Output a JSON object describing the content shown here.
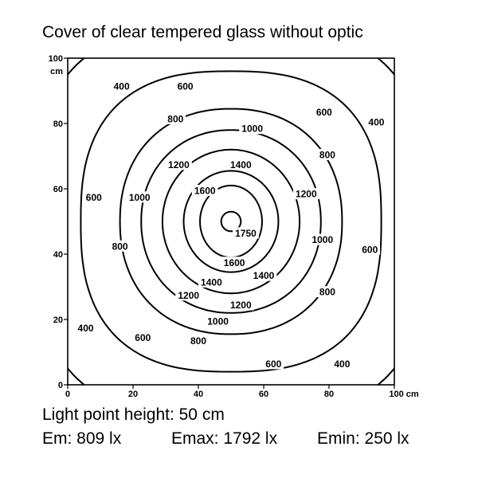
{
  "title": "Cover of clear tempered glass without optic",
  "footer": {
    "height_text": "Light point height: 50 cm",
    "em_text": "Em: 809 lx",
    "emax_text": "Emax: 1792 lx",
    "emin_text": "Emin: 250 lx"
  },
  "chart_data": {
    "type": "contour",
    "title": "Cover of clear tempered glass without optic",
    "xlabel": "",
    "ylabel": "",
    "unit_label": "cm",
    "xlim": [
      0,
      100
    ],
    "ylim": [
      0,
      100
    ],
    "x_ticks": [
      "0",
      "20",
      "40",
      "60",
      "80",
      "100 cm"
    ],
    "y_ticks": [
      "0",
      "20",
      "40",
      "60",
      "80",
      "100"
    ],
    "grid": false,
    "center": [
      50,
      50
    ],
    "levels": [
      {
        "value": 400,
        "label": "400",
        "rx": 60,
        "ry": 60,
        "sharpness": 3.0
      },
      {
        "value": 600,
        "label": "600",
        "rx": 46,
        "ry": 46,
        "sharpness": 2.6
      },
      {
        "value": 800,
        "label": "800",
        "rx": 34,
        "ry": 34.5,
        "sharpness": 2.2
      },
      {
        "value": 1000,
        "label": "1000",
        "rx": 27.5,
        "ry": 28,
        "sharpness": 2.1
      },
      {
        "value": 1200,
        "label": "1200",
        "rx": 21,
        "ry": 22,
        "sharpness": 2.0
      },
      {
        "value": 1400,
        "label": "1400",
        "rx": 14.5,
        "ry": 15.5,
        "sharpness": 2.0
      },
      {
        "value": 1600,
        "label": "1600",
        "rx": 9.5,
        "ry": 11,
        "sharpness": 2.0
      },
      {
        "value": 1750,
        "label": "1750",
        "rx": 3,
        "ry": 3,
        "sharpness": 2.0
      }
    ],
    "contour_labels": [
      {
        "text": "400",
        "x": 16.5,
        "y": 91.5
      },
      {
        "text": "600",
        "x": 36,
        "y": 91.5
      },
      {
        "text": "600",
        "x": 78.5,
        "y": 83.5
      },
      {
        "text": "400",
        "x": 94.5,
        "y": 80.5
      },
      {
        "text": "800",
        "x": 33,
        "y": 81.5
      },
      {
        "text": "1000",
        "x": 56.5,
        "y": 78.5
      },
      {
        "text": "800",
        "x": 79.5,
        "y": 70.5
      },
      {
        "text": "1200",
        "x": 34,
        "y": 67.5
      },
      {
        "text": "1400",
        "x": 53,
        "y": 67.5
      },
      {
        "text": "1600",
        "x": 42,
        "y": 59.5
      },
      {
        "text": "1200",
        "x": 73,
        "y": 58.5
      },
      {
        "text": "600",
        "x": 8,
        "y": 57.5
      },
      {
        "text": "1000",
        "x": 22,
        "y": 57.5
      },
      {
        "text": "1750",
        "x": 54.5,
        "y": 46.5
      },
      {
        "text": "1000",
        "x": 78,
        "y": 44.5
      },
      {
        "text": "600",
        "x": 92.5,
        "y": 41.5
      },
      {
        "text": "800",
        "x": 16,
        "y": 42.5
      },
      {
        "text": "1600",
        "x": 51,
        "y": 37.5
      },
      {
        "text": "1400",
        "x": 44,
        "y": 31.5
      },
      {
        "text": "1400",
        "x": 60,
        "y": 33.5
      },
      {
        "text": "1200",
        "x": 37,
        "y": 27.5
      },
      {
        "text": "1200",
        "x": 53,
        "y": 24.5
      },
      {
        "text": "800",
        "x": 79.5,
        "y": 28.5
      },
      {
        "text": "1000",
        "x": 46,
        "y": 19.5
      },
      {
        "text": "400",
        "x": 5.5,
        "y": 17.5
      },
      {
        "text": "600",
        "x": 23,
        "y": 14.5
      },
      {
        "text": "800",
        "x": 40,
        "y": 13.5
      },
      {
        "text": "600",
        "x": 63,
        "y": 6.5
      },
      {
        "text": "400",
        "x": 84,
        "y": 6.5
      }
    ]
  }
}
